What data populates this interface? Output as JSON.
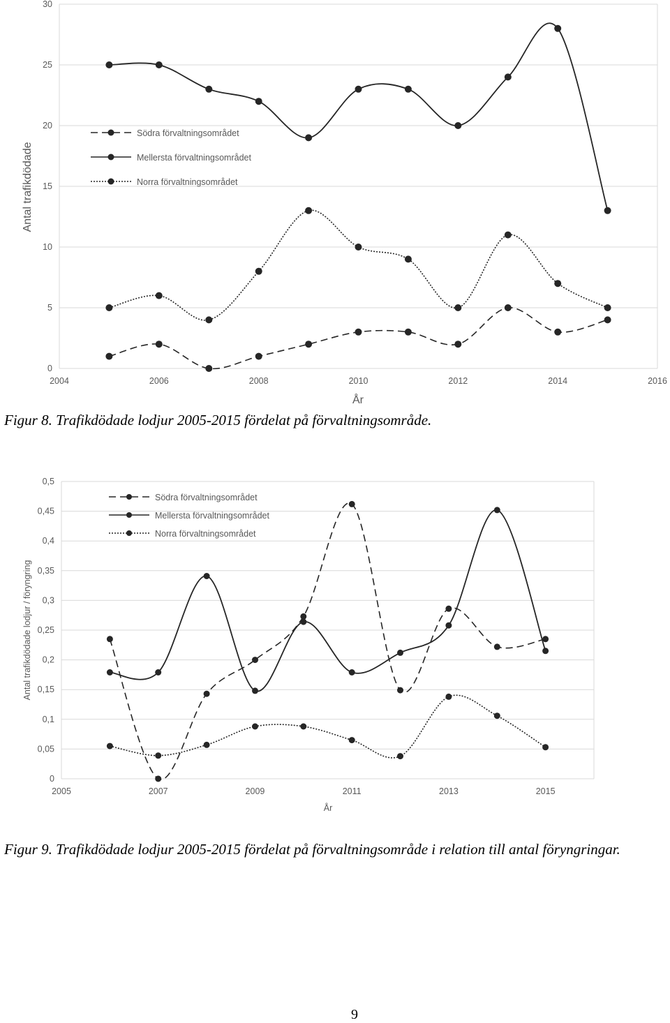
{
  "chart_data": [
    {
      "type": "line",
      "title": "",
      "xlabel": "År",
      "ylabel": "Antal trafikdödade",
      "x_ticks": [
        "2004",
        "2006",
        "2008",
        "2010",
        "2012",
        "2014",
        "2016"
      ],
      "y_ticks": [
        "0",
        "5",
        "10",
        "15",
        "20",
        "25",
        "30"
      ],
      "xlim": [
        2004,
        2016
      ],
      "ylim": [
        0,
        30
      ],
      "grid": "horizontal",
      "legend_position": "top-left",
      "x": [
        2005,
        2006,
        2007,
        2008,
        2009,
        2010,
        2011,
        2012,
        2013,
        2014,
        2015
      ],
      "series": [
        {
          "name": "Södra förvaltningsområdet",
          "style": "dashed",
          "values": [
            1,
            2,
            0,
            1,
            2,
            3,
            3,
            2,
            5,
            3,
            4
          ]
        },
        {
          "name": "Mellersta förvaltningsområdet",
          "style": "solid",
          "values": [
            25,
            25,
            23,
            22,
            19,
            23,
            23,
            20,
            24,
            28,
            13
          ]
        },
        {
          "name": "Norra förvaltningsområdet",
          "style": "dotted",
          "values": [
            5,
            6,
            4,
            8,
            13,
            10,
            9,
            5,
            11,
            7,
            5
          ]
        }
      ]
    },
    {
      "type": "line",
      "title": "",
      "xlabel": "År",
      "ylabel": "Antal trafikdödade lodjur / föryngring",
      "x_ticks": [
        "2005",
        "2007",
        "2009",
        "2011",
        "2013",
        "2015"
      ],
      "y_ticks": [
        "0",
        "0,05",
        "0,1",
        "0,15",
        "0,2",
        "0,25",
        "0,3",
        "0,35",
        "0,4",
        "0,45",
        "0,5"
      ],
      "xlim": [
        2005,
        2016
      ],
      "ylim": [
        0,
        0.5
      ],
      "grid": "horizontal",
      "legend_position": "top-left",
      "x": [
        2006,
        2007,
        2008,
        2009,
        2010,
        2011,
        2012,
        2013,
        2014,
        2015
      ],
      "series": [
        {
          "name": "Södra förvaltningsområdet",
          "style": "dashed",
          "values": [
            0.235,
            0.0,
            0.143,
            0.2,
            0.273,
            0.462,
            0.149,
            0.286,
            0.222,
            0.235
          ]
        },
        {
          "name": "Mellersta förvaltningsområdet",
          "style": "solid",
          "values": [
            0.179,
            0.179,
            0.341,
            0.148,
            0.264,
            0.179,
            0.212,
            0.258,
            0.452,
            0.215
          ]
        },
        {
          "name": "Norra förvaltningsområdet",
          "style": "dotted",
          "values": [
            0.055,
            0.039,
            0.057,
            0.088,
            0.088,
            0.065,
            0.038,
            0.138,
            0.106,
            0.053
          ]
        }
      ]
    }
  ],
  "captions": {
    "fig8": "Figur 8. Trafikdödade lodjur 2005-2015 fördelat på förvaltningsområde.",
    "fig9": "Figur 9. Trafikdödade lodjur 2005-2015 fördelat på förvaltningsområde i relation till antal föryngringar."
  },
  "page_number": "9"
}
